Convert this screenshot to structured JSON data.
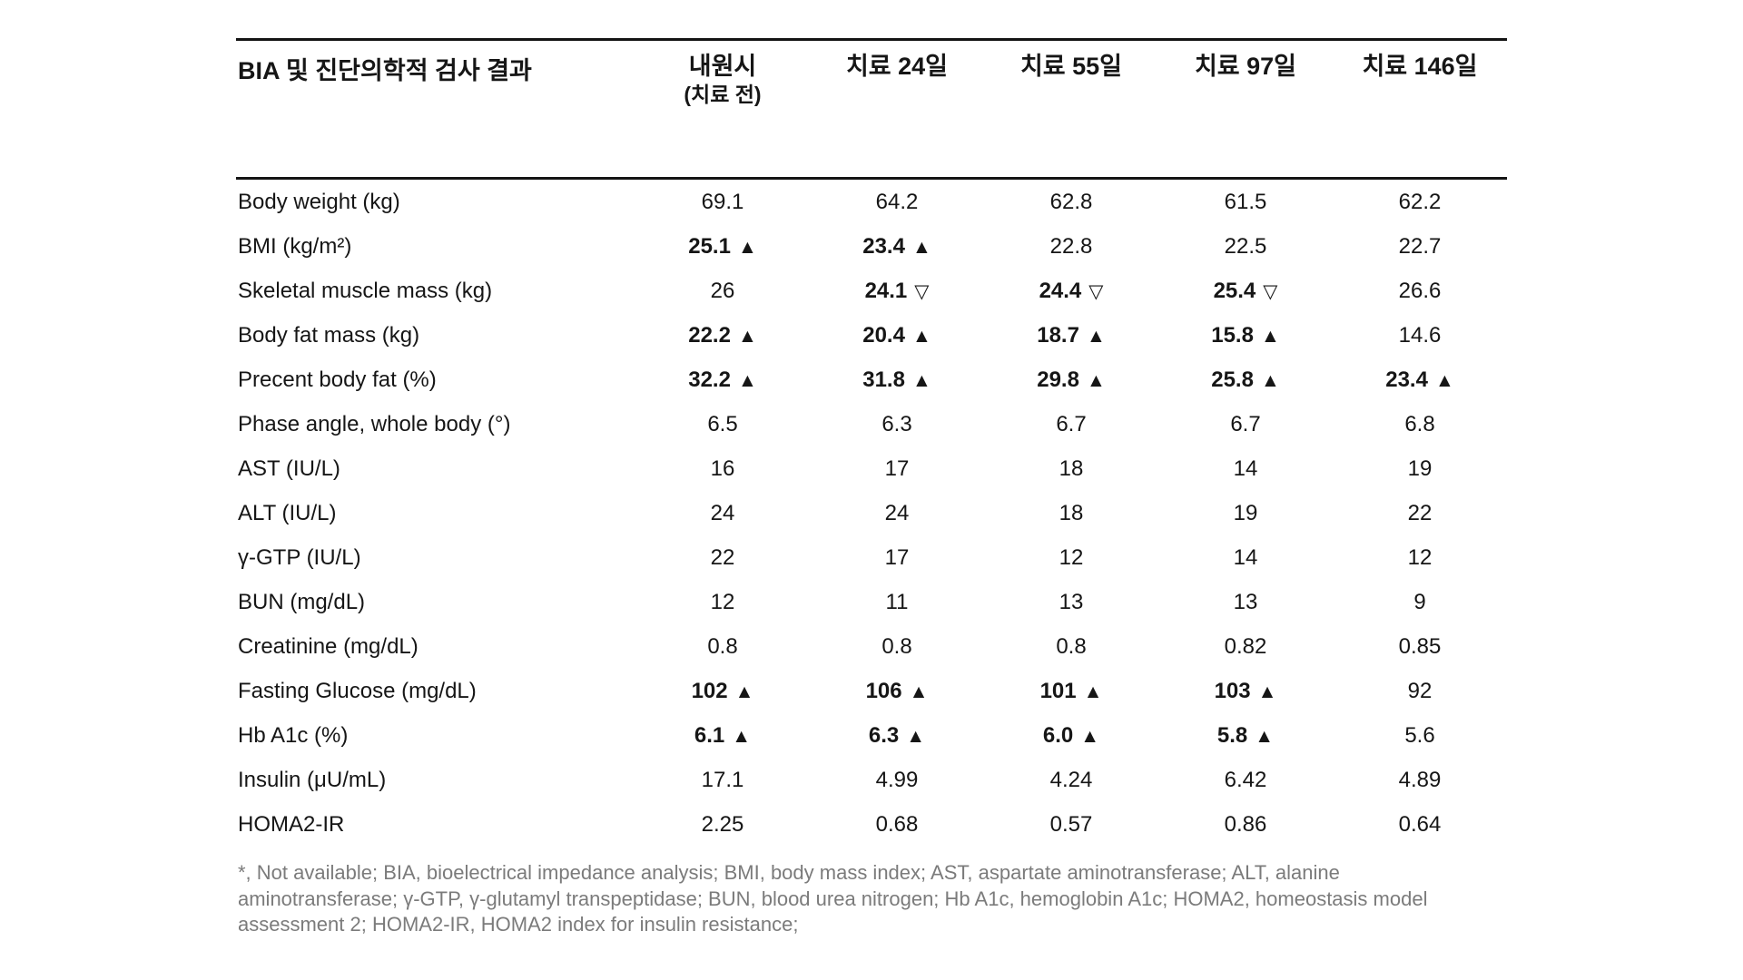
{
  "table": {
    "title": "BIA 및 진단의학적 검사 결과",
    "columns": [
      {
        "label": "내원시",
        "sublabel": "(치료 전)"
      },
      {
        "label": "치료 24일",
        "sublabel": ""
      },
      {
        "label": "치료 55일",
        "sublabel": ""
      },
      {
        "label": "치료 97일",
        "sublabel": ""
      },
      {
        "label": "치료 146일",
        "sublabel": ""
      }
    ],
    "rows": [
      {
        "label": "Body weight (kg)",
        "cells": [
          {
            "text": "69.1"
          },
          {
            "text": "64.2"
          },
          {
            "text": "62.8"
          },
          {
            "text": "61.5"
          },
          {
            "text": "62.2"
          }
        ]
      },
      {
        "label": "BMI (kg/m²)",
        "cells": [
          {
            "text": "25.1",
            "bold": true,
            "marker": "▲"
          },
          {
            "text": "23.4",
            "bold": true,
            "marker": "▲"
          },
          {
            "text": "22.8"
          },
          {
            "text": "22.5"
          },
          {
            "text": "22.7"
          }
        ]
      },
      {
        "label": "Skeletal muscle mass (kg)",
        "cells": [
          {
            "text": "26"
          },
          {
            "text": "24.1",
            "bold": true,
            "marker": "▽"
          },
          {
            "text": "24.4",
            "bold": true,
            "marker": "▽"
          },
          {
            "text": "25.4",
            "bold": true,
            "marker": "▽"
          },
          {
            "text": "26.6"
          }
        ]
      },
      {
        "label": "Body fat mass (kg)",
        "cells": [
          {
            "text": "22.2",
            "bold": true,
            "marker": "▲"
          },
          {
            "text": "20.4",
            "bold": true,
            "marker": "▲"
          },
          {
            "text": "18.7",
            "bold": true,
            "marker": "▲"
          },
          {
            "text": "15.8",
            "bold": true,
            "marker": "▲"
          },
          {
            "text": "14.6"
          }
        ]
      },
      {
        "label": "Precent body fat (%)",
        "cells": [
          {
            "text": "32.2",
            "bold": true,
            "marker": "▲"
          },
          {
            "text": "31.8",
            "bold": true,
            "marker": "▲"
          },
          {
            "text": "29.8",
            "bold": true,
            "marker": "▲"
          },
          {
            "text": "25.8",
            "bold": true,
            "marker": "▲"
          },
          {
            "text": "23.4",
            "bold": true,
            "marker": "▲"
          }
        ]
      },
      {
        "label": "Phase angle, whole body (°)",
        "cells": [
          {
            "text": "6.5"
          },
          {
            "text": "6.3"
          },
          {
            "text": "6.7"
          },
          {
            "text": "6.7"
          },
          {
            "text": "6.8"
          }
        ]
      },
      {
        "label": "AST (IU/L)",
        "cells": [
          {
            "text": "16"
          },
          {
            "text": "17"
          },
          {
            "text": "18"
          },
          {
            "text": "14"
          },
          {
            "text": "19"
          }
        ]
      },
      {
        "label": "ALT (IU/L)",
        "cells": [
          {
            "text": "24"
          },
          {
            "text": "24"
          },
          {
            "text": "18"
          },
          {
            "text": "19"
          },
          {
            "text": "22"
          }
        ]
      },
      {
        "label": "γ-GTP (IU/L)",
        "cells": [
          {
            "text": "22"
          },
          {
            "text": "17"
          },
          {
            "text": "12"
          },
          {
            "text": "14"
          },
          {
            "text": "12"
          }
        ]
      },
      {
        "label": "BUN (mg/dL)",
        "cells": [
          {
            "text": "12"
          },
          {
            "text": "11"
          },
          {
            "text": "13"
          },
          {
            "text": "13"
          },
          {
            "text": "9"
          }
        ]
      },
      {
        "label": "Creatinine (mg/dL)",
        "cells": [
          {
            "text": "0.8"
          },
          {
            "text": "0.8"
          },
          {
            "text": "0.8"
          },
          {
            "text": "0.82"
          },
          {
            "text": "0.85"
          }
        ]
      },
      {
        "label": "Fasting Glucose (mg/dL)",
        "cells": [
          {
            "text": "102",
            "bold": true,
            "marker": "▲"
          },
          {
            "text": "106",
            "bold": true,
            "marker": "▲"
          },
          {
            "text": "101",
            "bold": true,
            "marker": "▲"
          },
          {
            "text": "103",
            "bold": true,
            "marker": "▲"
          },
          {
            "text": "92"
          }
        ]
      },
      {
        "label": "Hb A1c (%)",
        "cells": [
          {
            "text": "6.1",
            "bold": true,
            "marker": "▲"
          },
          {
            "text": "6.3",
            "bold": true,
            "marker": "▲"
          },
          {
            "text": "6.0",
            "bold": true,
            "marker": "▲"
          },
          {
            "text": "5.8",
            "bold": true,
            "marker": "▲"
          },
          {
            "text": "5.6"
          }
        ]
      },
      {
        "label": "Insulin (μU/mL)",
        "cells": [
          {
            "text": "17.1"
          },
          {
            "text": "4.99"
          },
          {
            "text": "4.24"
          },
          {
            "text": "6.42"
          },
          {
            "text": "4.89"
          }
        ]
      },
      {
        "label": "HOMA2-IR",
        "cells": [
          {
            "text": "2.25"
          },
          {
            "text": "0.68"
          },
          {
            "text": "0.57"
          },
          {
            "text": "0.86"
          },
          {
            "text": "0.64"
          }
        ]
      }
    ]
  },
  "footnote": "*, Not available; BIA, bioelectrical impedance analysis; BMI, body mass index; AST, aspartate aminotransferase; ALT, alanine aminotransferase; γ-GTP, γ-glutamyl transpeptidase; BUN, blood urea nitrogen; Hb A1c, hemoglobin A1c; HOMA2, homeostasis model assessment 2; HOMA2-IR, HOMA2 index for insulin resistance;",
  "colors": {
    "background": "#ffffff",
    "text": "#161616",
    "rule": "#141414",
    "footnote_text": "#7b7b7b"
  }
}
